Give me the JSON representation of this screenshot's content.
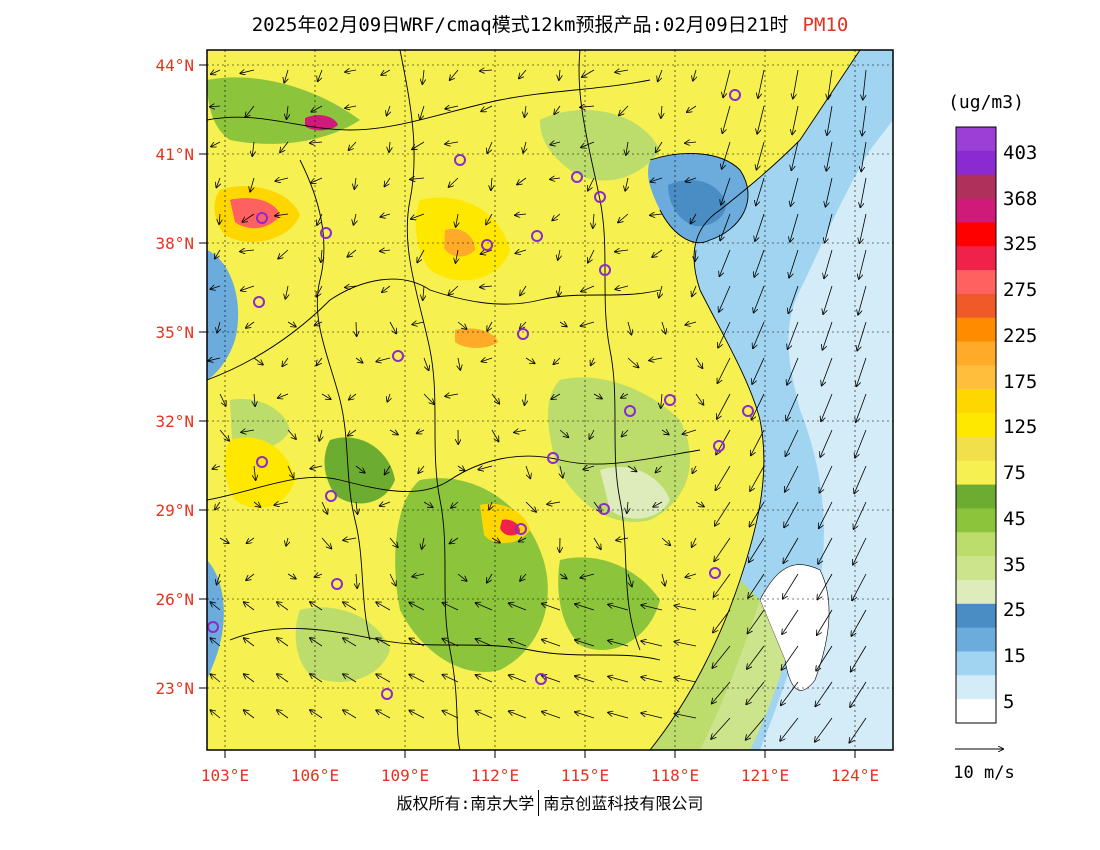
{
  "title": {
    "main": "2025年02月09日WRF/cmaq模式12km预报产品:02月09日21时",
    "pollutant": "PM10"
  },
  "legend": {
    "unit": "(ug/m3)",
    "labels": [
      "403",
      "368",
      "325",
      "275",
      "225",
      "175",
      "125",
      "75",
      "45",
      "35",
      "25",
      "15",
      "5"
    ],
    "colors": [
      "#9b3fd6",
      "#8a2ad0",
      "#b0305c",
      "#cf1a7a",
      "#ff0000",
      "#f0224a",
      "#ff6060",
      "#f05a28",
      "#ff8c00",
      "#ffaa28",
      "#ffbf3c",
      "#ffd700",
      "#ffe800",
      "#f2e04a",
      "#f6f050",
      "#6cac30",
      "#8cc43c",
      "#bcdc6c",
      "#cce48c",
      "#deecbc",
      "#4a8cc4",
      "#6cacdc",
      "#a0d4f0",
      "#d4ecf8",
      "#ffffff"
    ],
    "wind_scale": "10 m/s"
  },
  "axes": {
    "lat_labels": [
      "44°N",
      "41°N",
      "38°N",
      "35°N",
      "32°N",
      "29°N",
      "26°N",
      "23°N"
    ],
    "lon_labels": [
      "103°E",
      "106°E",
      "109°E",
      "112°E",
      "115°E",
      "118°E",
      "121°E",
      "124°E"
    ]
  },
  "colors": {
    "axis_label": "#e8321e",
    "city_marker": "#8a2ad0",
    "sea_low": "#d4ecf8",
    "land_base": "#f6f050"
  },
  "copyright": {
    "left": "版权所有:南京大学",
    "right": "南京创蓝科技有限公司"
  }
}
